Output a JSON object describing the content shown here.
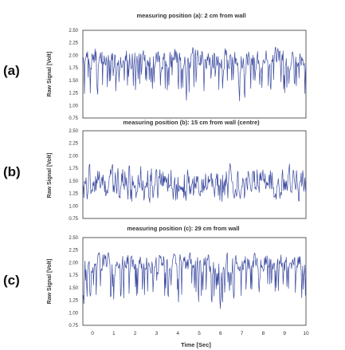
{
  "chart_data": {
    "type": "line",
    "xlabel": "Time [Sec]",
    "xlim": [
      0,
      10
    ],
    "x_ticks": [
      "0",
      "1",
      "2",
      "3",
      "4",
      "5",
      "6",
      "7",
      "8",
      "9",
      "10"
    ],
    "line_color": "#3b4aa0",
    "panels": [
      {
        "label": "(a)",
        "title": "measuring position (a): 2 cm from wall",
        "ylabel": "Raw Signal [Volt]",
        "ylim": [
          0.75,
          2.5
        ],
        "y_ticks": [
          "2.50",
          "2.25",
          "2.00",
          "1.75",
          "1.50",
          "1.25",
          "1.00",
          "0.75"
        ],
        "seed": 7,
        "base": 1.95,
        "amp": 0.55,
        "drop_rate": 0.18,
        "lo": 0.9,
        "hi": 2.4
      },
      {
        "label": "(b)",
        "title": "measuring position (b): 15 cm from wall (centre)",
        "ylabel": "Raw Signal [Volt]",
        "ylim": [
          0.75,
          2.5
        ],
        "y_ticks": [
          "2.50",
          "2.25",
          "2.00",
          "1.75",
          "1.50",
          "1.25",
          "1.00",
          "0.75"
        ],
        "seed": 19,
        "base": 1.55,
        "amp": 0.75,
        "drop_rate": 0.3,
        "lo": 0.95,
        "hi": 2.3
      },
      {
        "label": "(c)",
        "title": "measuring position (c): 29 cm from wall",
        "ylabel": "Raw Signal [Volt]",
        "ylim": [
          0.75,
          2.5
        ],
        "y_ticks": [
          "2.50",
          "2.25",
          "2.00",
          "1.75",
          "1.50",
          "1.25",
          "1.00",
          "0.75"
        ],
        "seed": 31,
        "base": 2.0,
        "amp": 0.5,
        "drop_rate": 0.2,
        "lo": 0.95,
        "hi": 2.4
      }
    ]
  }
}
